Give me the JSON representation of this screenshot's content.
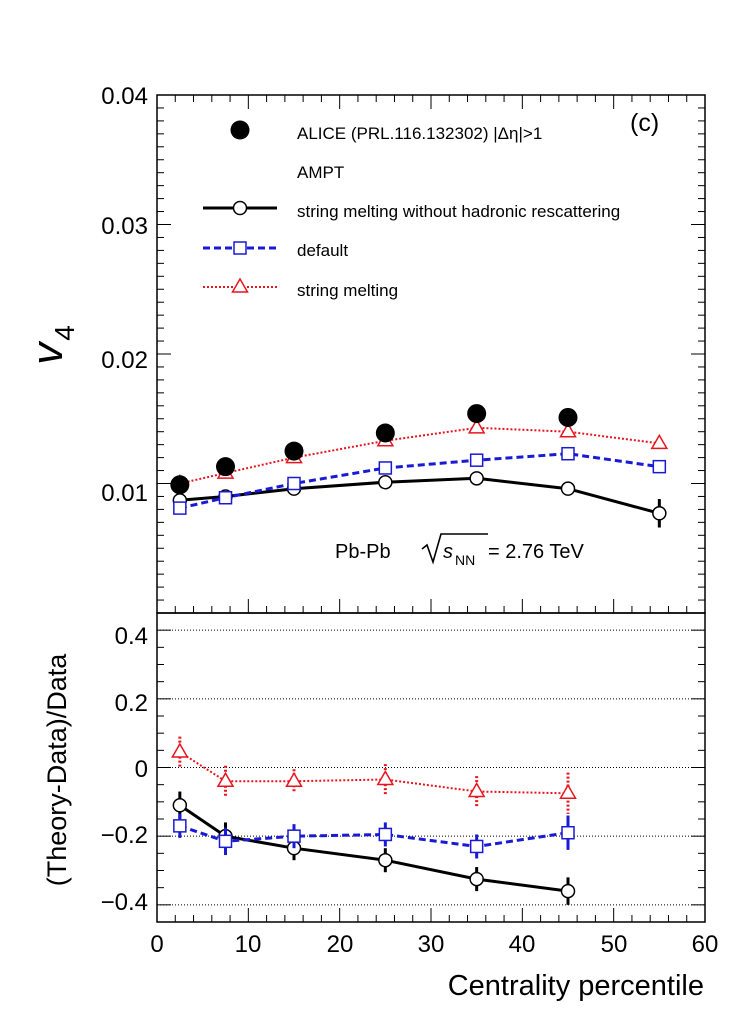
{
  "chart_data": [
    {
      "type": "line",
      "panel": "top",
      "label": "(c)",
      "ylabel": "v",
      "ylabel_sub": "4",
      "xlim": [
        0,
        60
      ],
      "ylim": [
        0,
        0.04
      ],
      "yticks": [
        "0.01",
        "0.02",
        "0.03",
        "0.04"
      ],
      "annotation": {
        "pre": "Pb-Pb ",
        "s": "s",
        "sub": "NN",
        "post": " = 2.76 TeV"
      },
      "legend": {
        "alice": "ALICE (PRL.116.132302) |Δη|>1",
        "ampt": "AMPT",
        "sm_norescat": "string melting without hadronic rescattering",
        "default": "default",
        "sm": "string melting"
      },
      "series": [
        {
          "key": "alice",
          "color": "#000000",
          "marker": "filled-circle",
          "x": [
            2.5,
            7.5,
            15,
            25,
            35,
            45
          ],
          "y": [
            0.0099,
            0.0113,
            0.0125,
            0.0139,
            0.0154,
            0.0151
          ],
          "err": [
            0.0004,
            0.0004,
            0.0004,
            0.0004,
            0.0006,
            0.0007
          ]
        },
        {
          "key": "sm_norescat",
          "color": "#000000",
          "marker": "open-circle",
          "line": "solid",
          "x": [
            2.5,
            7.5,
            15,
            25,
            35,
            45,
            55
          ],
          "y": [
            0.0087,
            0.009,
            0.0096,
            0.0101,
            0.0104,
            0.0096,
            0.0077
          ],
          "err": [
            0.0002,
            0.0002,
            0.0002,
            0.0002,
            0.0002,
            0.0003,
            0.0011
          ]
        },
        {
          "key": "default",
          "color": "#1a1ad6",
          "marker": "open-square",
          "line": "dashed",
          "x": [
            2.5,
            7.5,
            15,
            25,
            35,
            45,
            55
          ],
          "y": [
            0.0081,
            0.0089,
            0.01,
            0.0112,
            0.0118,
            0.0123,
            0.0113
          ],
          "err": [
            0.0002,
            0.0002,
            0.0002,
            0.0002,
            0.0002,
            0.0003,
            0.0003
          ]
        },
        {
          "key": "sm",
          "color": "#e8141e",
          "marker": "open-triangle",
          "line": "dotted",
          "x": [
            2.5,
            7.5,
            15,
            25,
            35,
            45,
            55
          ],
          "y": [
            0.01,
            0.0108,
            0.012,
            0.0133,
            0.0143,
            0.014,
            0.0131
          ],
          "err": [
            0.0002,
            0.0002,
            0.0002,
            0.0002,
            0.0002,
            0.0003,
            0.0003
          ]
        }
      ]
    },
    {
      "type": "line",
      "panel": "bottom",
      "xlabel": "Centrality percentile",
      "ylabel": "(Theory-Data)/Data",
      "xlim": [
        0,
        60
      ],
      "ylim": [
        -0.45,
        0.45
      ],
      "xticks": [
        "0",
        "10",
        "20",
        "30",
        "40",
        "50",
        "60"
      ],
      "yticks": [
        "−0.4",
        "−0.2",
        "0",
        "0.2",
        "0.4"
      ],
      "yticks_values": [
        -0.4,
        -0.2,
        0,
        0.2,
        0.4
      ],
      "grid": "horizontal dotted",
      "series": [
        {
          "key": "sm_norescat",
          "color": "#000000",
          "marker": "open-circle",
          "line": "solid",
          "x": [
            2.5,
            7.5,
            15,
            25,
            35,
            45
          ],
          "y": [
            -0.11,
            -0.2,
            -0.235,
            -0.27,
            -0.325,
            -0.36
          ],
          "err": [
            0.04,
            0.04,
            0.035,
            0.035,
            0.035,
            0.04
          ]
        },
        {
          "key": "default",
          "color": "#1a1ad6",
          "marker": "open-square",
          "line": "dashed",
          "x": [
            2.5,
            7.5,
            15,
            25,
            35,
            45
          ],
          "y": [
            -0.17,
            -0.215,
            -0.2,
            -0.195,
            -0.23,
            -0.19
          ],
          "err": [
            0.035,
            0.04,
            0.035,
            0.035,
            0.035,
            0.05
          ]
        },
        {
          "key": "sm",
          "color": "#e8141e",
          "marker": "open-triangle",
          "line": "dotted",
          "x": [
            2.5,
            7.5,
            15,
            25,
            35,
            45
          ],
          "y": [
            0.045,
            -0.04,
            -0.04,
            -0.035,
            -0.07,
            -0.075
          ],
          "err": [
            0.045,
            0.045,
            0.035,
            0.045,
            0.045,
            0.06
          ]
        }
      ]
    }
  ]
}
